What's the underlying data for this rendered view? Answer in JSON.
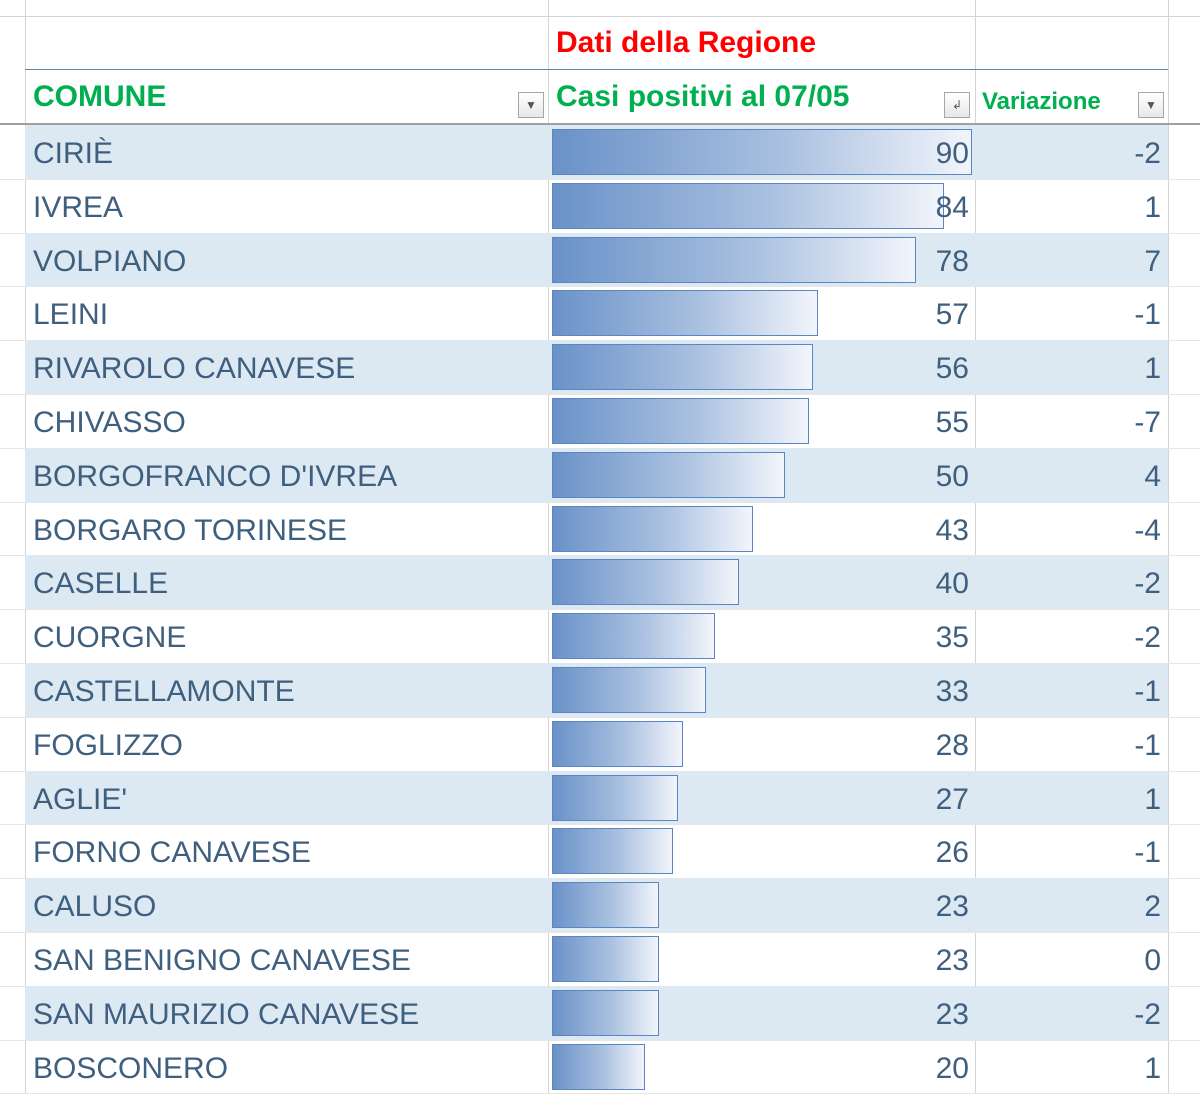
{
  "title": "Dati della Regione",
  "headers": {
    "comune": "COMUNE",
    "casi": "Casi positivi al 07/05",
    "variazione": "Variazione"
  },
  "colors": {
    "title": "#ff0000",
    "header": "#00b050",
    "text": "#3f5f7f",
    "stripe": "#dce9f3",
    "bar": "#6a92c8"
  },
  "icons": {
    "filter": "filter-dropdown-icon",
    "sort": "sort-descending-icon"
  },
  "rows": [
    {
      "comune": "CIRIÈ",
      "casi": 90,
      "variazione": -2
    },
    {
      "comune": "IVREA",
      "casi": 84,
      "variazione": 1
    },
    {
      "comune": "VOLPIANO",
      "casi": 78,
      "variazione": 7
    },
    {
      "comune": "LEINI",
      "casi": 57,
      "variazione": -1
    },
    {
      "comune": "RIVAROLO CANAVESE",
      "casi": 56,
      "variazione": 1
    },
    {
      "comune": "CHIVASSO",
      "casi": 55,
      "variazione": -7
    },
    {
      "comune": "BORGOFRANCO D'IVREA",
      "casi": 50,
      "variazione": 4
    },
    {
      "comune": "BORGARO TORINESE",
      "casi": 43,
      "variazione": -4
    },
    {
      "comune": "CASELLE",
      "casi": 40,
      "variazione": -2
    },
    {
      "comune": "CUORGNE",
      "casi": 35,
      "variazione": -2
    },
    {
      "comune": "CASTELLAMONTE",
      "casi": 33,
      "variazione": -1
    },
    {
      "comune": "FOGLIZZO",
      "casi": 28,
      "variazione": -1
    },
    {
      "comune": "AGLIE'",
      "casi": 27,
      "variazione": 1
    },
    {
      "comune": "FORNO CANAVESE",
      "casi": 26,
      "variazione": -1
    },
    {
      "comune": "CALUSO",
      "casi": 23,
      "variazione": 2
    },
    {
      "comune": "SAN BENIGNO CANAVESE",
      "casi": 23,
      "variazione": 0
    },
    {
      "comune": "SAN MAURIZIO CANAVESE",
      "casi": 23,
      "variazione": -2
    },
    {
      "comune": "BOSCONERO",
      "casi": 20,
      "variazione": 1
    }
  ]
}
